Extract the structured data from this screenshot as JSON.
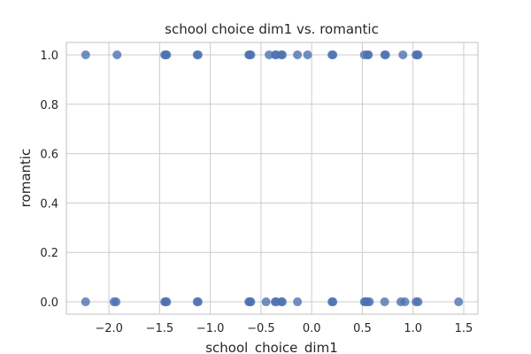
{
  "chart_data": {
    "type": "scatter",
    "title": "school choice dim1 vs. romantic",
    "xlabel": "school_choice_dim1",
    "ylabel": "romantic",
    "xlim": [
      -2.42,
      1.64
    ],
    "ylim": [
      -0.05,
      1.05
    ],
    "xticks": [
      -2.0,
      -1.5,
      -1.0,
      -0.5,
      0.0,
      0.5,
      1.0,
      1.5
    ],
    "xtick_labels": [
      "−2.0",
      "−1.5",
      "−1.0",
      "−0.5",
      "0.0",
      "0.5",
      "1.0",
      "1.5"
    ],
    "yticks": [
      0.0,
      0.2,
      0.4,
      0.6,
      0.8,
      1.0
    ],
    "ytick_labels": [
      "0.0",
      "0.2",
      "0.4",
      "0.6",
      "0.8",
      "1.0"
    ],
    "grid": true,
    "color": "#4c72b0",
    "series": [
      {
        "x": [
          -2.23,
          -1.92,
          -1.45,
          -1.44,
          -1.43,
          -1.13,
          -1.12,
          -0.62,
          -0.61,
          -0.6,
          -0.42,
          -0.36,
          -0.35,
          -0.3,
          -0.29,
          -0.14,
          -0.04,
          0.2,
          0.21,
          0.52,
          0.55,
          0.56,
          0.72,
          0.73,
          0.9,
          1.03,
          1.04,
          1.05
        ],
        "y": [
          1,
          1,
          1,
          1,
          1,
          1,
          1,
          1,
          1,
          1,
          1,
          1,
          1,
          1,
          1,
          1,
          1,
          1,
          1,
          1,
          1,
          1,
          1,
          1,
          1,
          1,
          1,
          1
        ]
      },
      {
        "x": [
          -2.23,
          -1.95,
          -1.93,
          -1.45,
          -1.44,
          -1.43,
          -1.13,
          -1.12,
          -0.62,
          -0.61,
          -0.6,
          -0.45,
          -0.36,
          -0.35,
          -0.3,
          -0.29,
          -0.14,
          0.2,
          0.21,
          0.52,
          0.53,
          0.55,
          0.57,
          0.72,
          0.88,
          0.92,
          1.03,
          1.05,
          1.45
        ],
        "y": [
          0,
          0,
          0,
          0,
          0,
          0,
          0,
          0,
          0,
          0,
          0,
          0,
          0,
          0,
          0,
          0,
          0,
          0,
          0,
          0,
          0,
          0,
          0,
          0,
          0,
          0,
          0,
          0,
          0
        ]
      }
    ]
  }
}
